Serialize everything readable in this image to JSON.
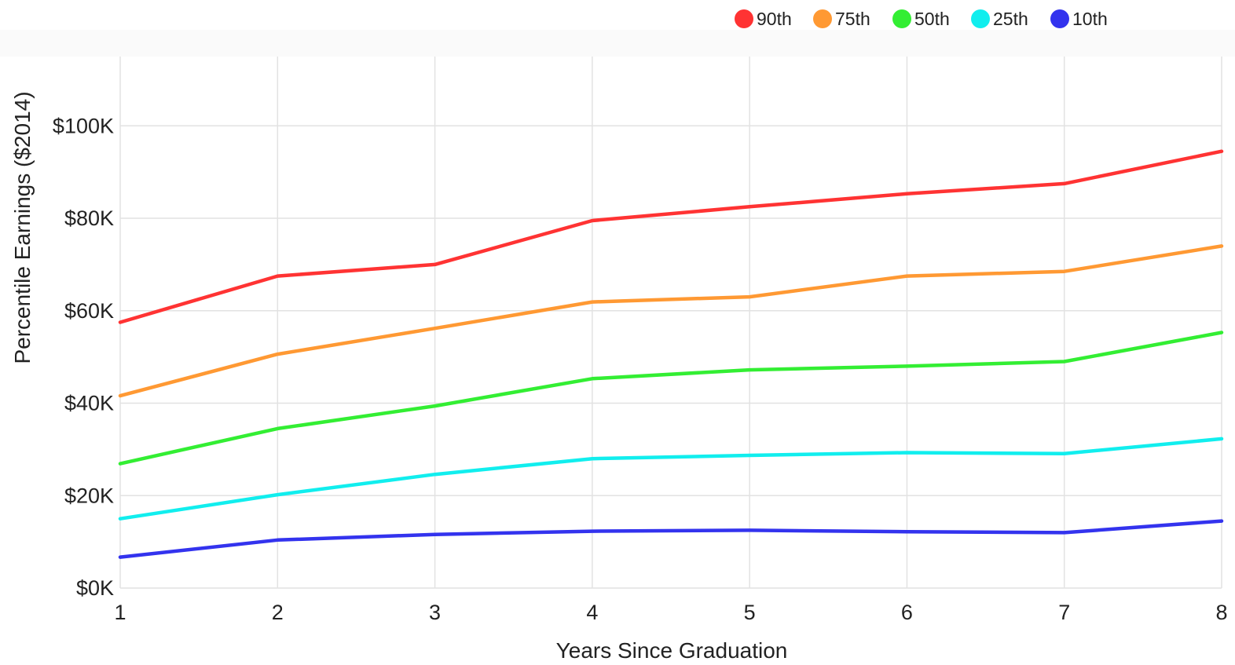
{
  "chart_data": {
    "type": "line",
    "x": [
      1,
      2,
      3,
      4,
      5,
      6,
      7,
      8
    ],
    "xlabel": "Years Since Graduation",
    "ylabel": "Percentile Earnings ($2014)",
    "ylim": [
      0,
      115000
    ],
    "xlim": [
      1,
      8
    ],
    "y_ticks": [
      0,
      20000,
      40000,
      60000,
      80000,
      100000
    ],
    "y_tick_labels": [
      "$0K",
      "$20K",
      "$40K",
      "$60K",
      "$80K",
      "$100K"
    ],
    "x_tick_labels": [
      "1",
      "2",
      "3",
      "4",
      "5",
      "6",
      "7",
      "8"
    ],
    "grid": true,
    "legend_position": "top-right",
    "series": [
      {
        "name": "90th",
        "color": "#ff3333",
        "values": [
          57500,
          67500,
          70000,
          79500,
          82500,
          85300,
          87500,
          94500
        ]
      },
      {
        "name": "75th",
        "color": "#ff9933",
        "values": [
          41600,
          50600,
          56200,
          61900,
          63000,
          67500,
          68500,
          74000
        ]
      },
      {
        "name": "50th",
        "color": "#33ee33",
        "values": [
          26900,
          34500,
          39400,
          45300,
          47200,
          48000,
          49000,
          55300
        ]
      },
      {
        "name": "25th",
        "color": "#11eeee",
        "values": [
          15000,
          20200,
          24600,
          28000,
          28700,
          29300,
          29100,
          32300
        ]
      },
      {
        "name": "10th",
        "color": "#3333ee",
        "values": [
          6700,
          10400,
          11600,
          12300,
          12500,
          12200,
          12000,
          14500
        ]
      }
    ]
  }
}
